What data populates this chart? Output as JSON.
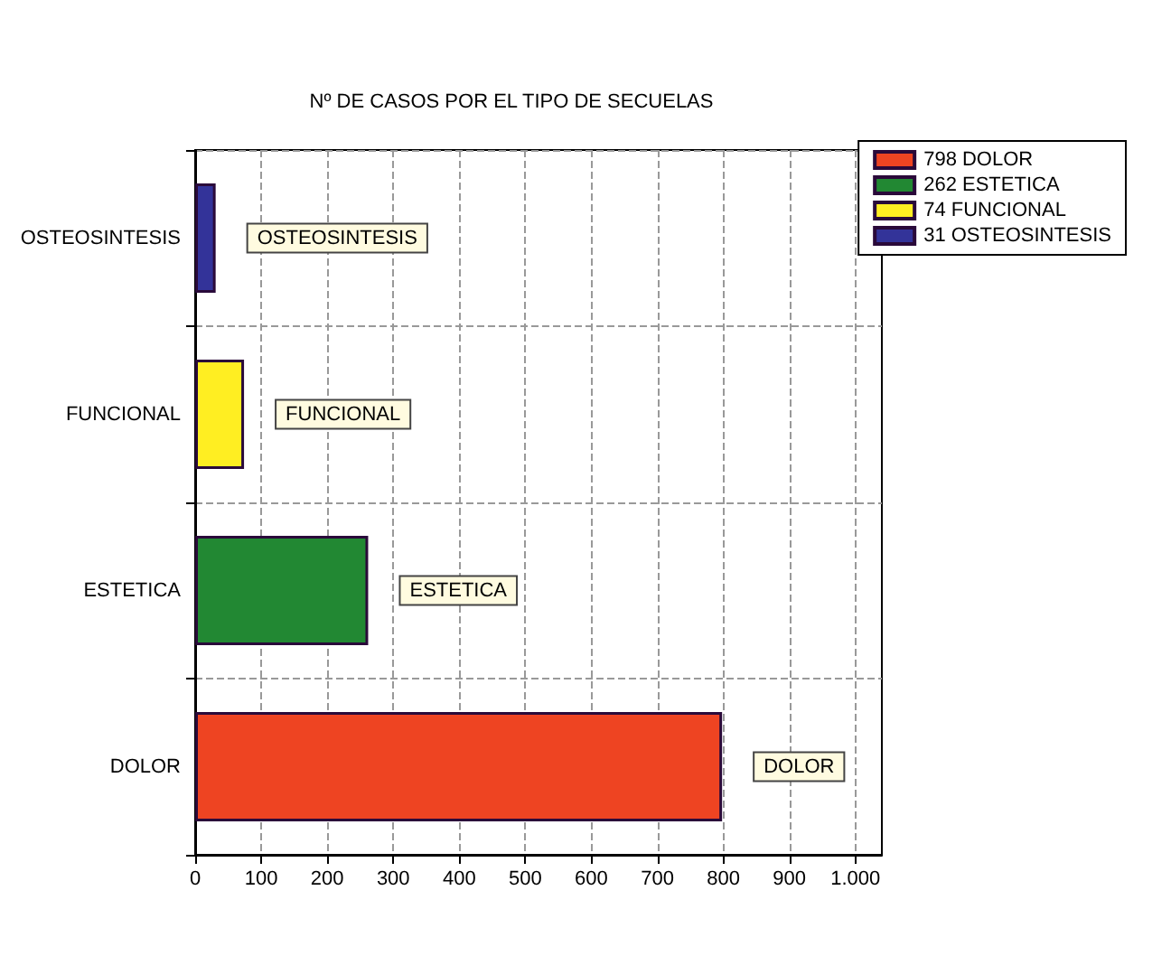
{
  "chart_data": {
    "type": "bar",
    "orientation": "horizontal",
    "stacked": true,
    "title": "Nº DE CASOS POR EL TIPO DE SECUELAS",
    "categories": [
      "OSTEOSINTESIS",
      "FUNCIONAL",
      "ESTETICA",
      "DOLOR"
    ],
    "series": [
      {
        "name": "798 DOLOR",
        "color": "#ee4422",
        "values": [
          null,
          null,
          null,
          798
        ],
        "value_labels": [
          null,
          null,
          null,
          "DOLOR"
        ]
      },
      {
        "name": "262 ESTETICA",
        "color": "#228833",
        "values": [
          null,
          null,
          262,
          null
        ],
        "value_labels": [
          null,
          null,
          "ESTETICA",
          null
        ]
      },
      {
        "name": "74 FUNCIONAL",
        "color": "#ffee22",
        "values": [
          null,
          74,
          null,
          null
        ],
        "value_labels": [
          null,
          "FUNCIONAL",
          null,
          null
        ]
      },
      {
        "name": "31 OSTEOSINTESIS",
        "color": "#333399",
        "values": [
          31,
          null,
          null,
          null
        ],
        "value_labels": [
          "OSTEOSINTESIS",
          null,
          null,
          null
        ]
      }
    ],
    "xlim": [
      0,
      1040
    ],
    "xticks": [
      0,
      100,
      200,
      300,
      400,
      500,
      600,
      700,
      800,
      900,
      {
        "value": 1000,
        "label": "1.000"
      }
    ],
    "grid": true,
    "legend": "top right"
  }
}
